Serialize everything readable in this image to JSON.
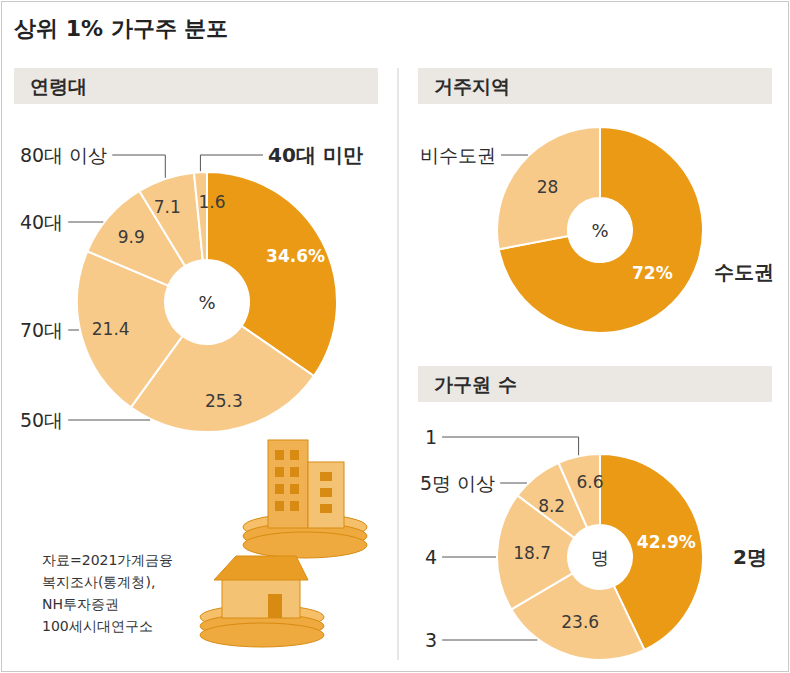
{
  "title": "상위 1% 가구주 분포",
  "source": [
    "자료=2021가계금융",
    "복지조사(통계청),",
    "NH투자증권",
    "100세시대연구소"
  ],
  "chart_data": [
    {
      "type": "donut",
      "title": "연령대",
      "center_label": "%",
      "categories": [
        null,
        "50대",
        "70대",
        "40대",
        "80대 이상",
        "40대 미만"
      ],
      "values": [
        34.6,
        25.3,
        21.4,
        9.9,
        7.1,
        1.6
      ],
      "value_labels": [
        "34.6%",
        "25.3",
        "21.4",
        "9.9",
        "7.1",
        "1.6"
      ],
      "colors": [
        "#ea9a14",
        "#f8ca8a",
        "#f8ca8a",
        "#f8ca8a",
        "#f8ca8a",
        "#f8ca8a"
      ],
      "data_labels": true
    },
    {
      "type": "donut",
      "title": "거주지역",
      "center_label": "%",
      "categories": [
        "수도권",
        "비수도권"
      ],
      "values": [
        72,
        28
      ],
      "value_labels": [
        "72%",
        "28"
      ],
      "colors": [
        "#ea9a14",
        "#f8ca8a"
      ],
      "data_labels": true
    },
    {
      "type": "donut",
      "title": "가구원 수",
      "center_label": "명",
      "categories": [
        "2명",
        "3",
        "4",
        "5명 이상",
        "1"
      ],
      "values": [
        42.9,
        23.6,
        18.7,
        8.2,
        6.6
      ],
      "value_labels": [
        "42.9%",
        "23.6",
        "18.7",
        "8.2",
        "6.6"
      ],
      "colors": [
        "#ea9a14",
        "#f8ca8a",
        "#f8ca8a",
        "#f8ca8a",
        "#f8ca8a"
      ],
      "data_labels": true
    }
  ]
}
